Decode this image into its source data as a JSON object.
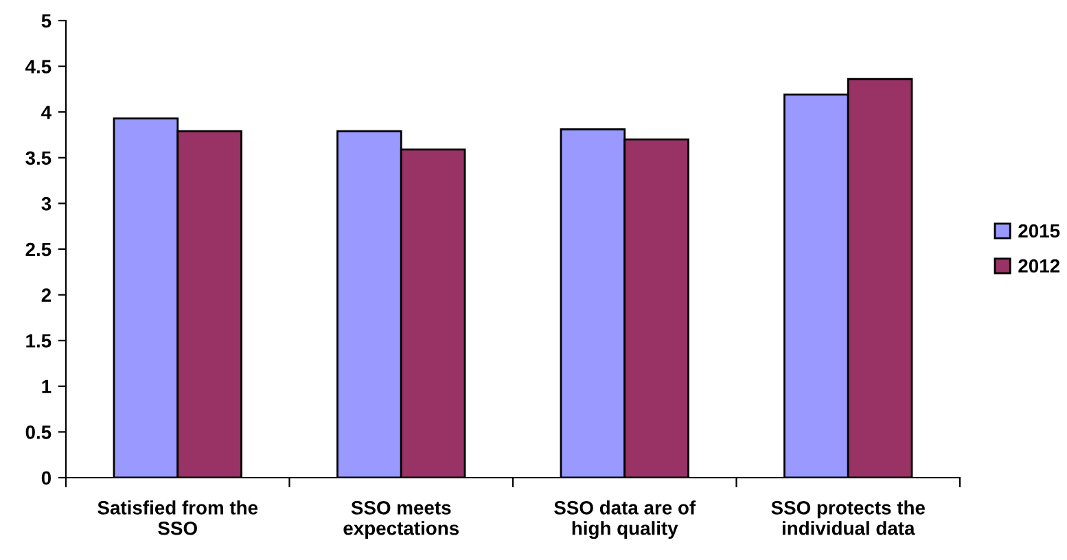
{
  "chart_data": {
    "type": "bar",
    "categories": [
      "Satisfied from the\nSSO",
      "SSO meets\nexpectations",
      "SSO data are of\nhigh quality",
      "SSO protects the\nindividual data"
    ],
    "series": [
      {
        "name": "2015",
        "color": "#9999ff",
        "values": [
          3.93,
          3.79,
          3.81,
          4.19
        ]
      },
      {
        "name": "2012",
        "color": "#993366",
        "values": [
          3.79,
          3.59,
          3.7,
          4.36
        ]
      }
    ],
    "ylim": [
      0,
      5
    ],
    "yticks": [
      0,
      0.5,
      1,
      1.5,
      2,
      2.5,
      3,
      3.5,
      4,
      4.5,
      5
    ],
    "grid": false,
    "legend": "right"
  }
}
